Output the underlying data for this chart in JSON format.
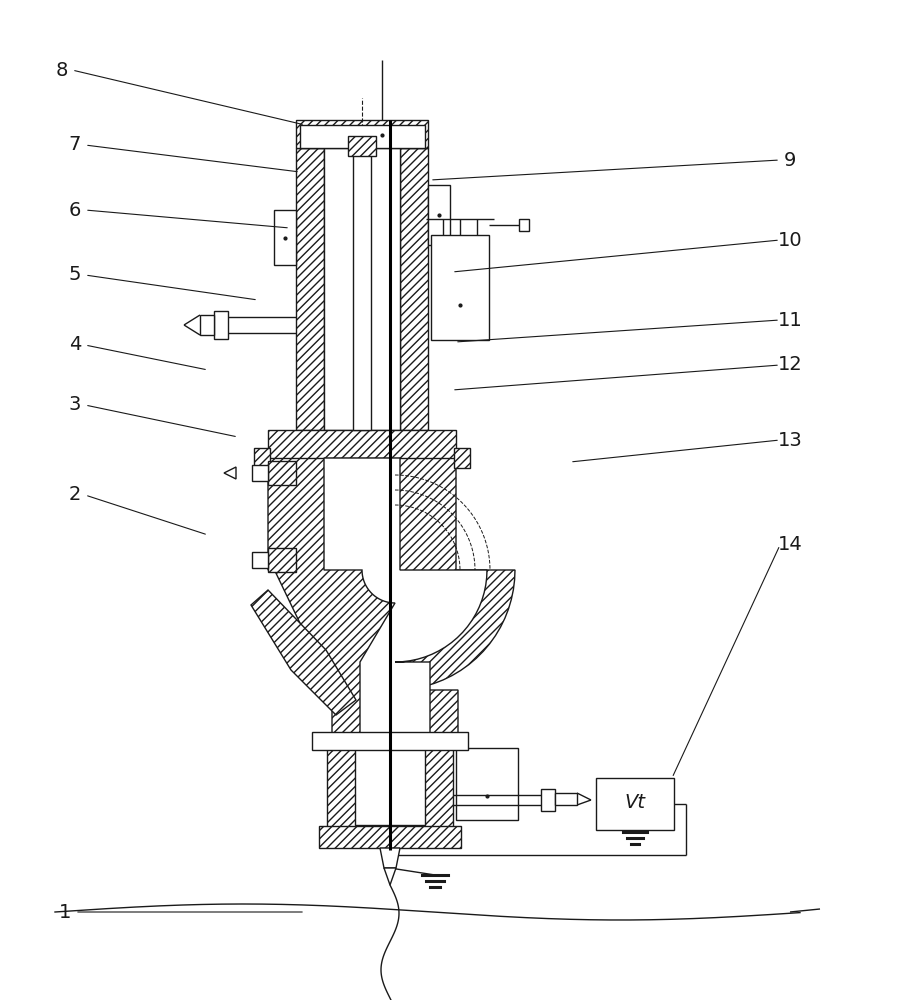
{
  "bg_color": "#ffffff",
  "line_color": "#1a1a1a",
  "lw": 1.0,
  "lw_thick": 2.2,
  "labels_left": [
    [
      "8",
      62,
      930
    ],
    [
      "7",
      75,
      855
    ],
    [
      "6",
      75,
      790
    ],
    [
      "5",
      75,
      725
    ],
    [
      "4",
      75,
      655
    ],
    [
      "3",
      75,
      595
    ],
    [
      "2",
      75,
      505
    ],
    [
      "1",
      65,
      88
    ]
  ],
  "labels_right": [
    [
      "9",
      790,
      840
    ],
    [
      "10",
      790,
      760
    ],
    [
      "11",
      790,
      680
    ],
    [
      "12",
      790,
      635
    ],
    [
      "13",
      790,
      560
    ],
    [
      "14",
      790,
      455
    ]
  ],
  "label_lines_left": [
    [
      "8",
      62,
      930,
      305,
      875
    ],
    [
      "7",
      75,
      855,
      300,
      828
    ],
    [
      "6",
      75,
      790,
      290,
      772
    ],
    [
      "5",
      75,
      725,
      258,
      700
    ],
    [
      "4",
      75,
      655,
      208,
      630
    ],
    [
      "3",
      75,
      595,
      238,
      563
    ],
    [
      "2",
      75,
      505,
      208,
      465
    ],
    [
      "1",
      65,
      88,
      305,
      88
    ]
  ],
  "label_lines_right": [
    [
      "9",
      790,
      840,
      430,
      820
    ],
    [
      "10",
      790,
      760,
      452,
      728
    ],
    [
      "11",
      790,
      680,
      455,
      658
    ],
    [
      "12",
      790,
      635,
      452,
      610
    ],
    [
      "13",
      790,
      560,
      570,
      538
    ],
    [
      "14",
      790,
      455,
      672,
      222
    ]
  ]
}
